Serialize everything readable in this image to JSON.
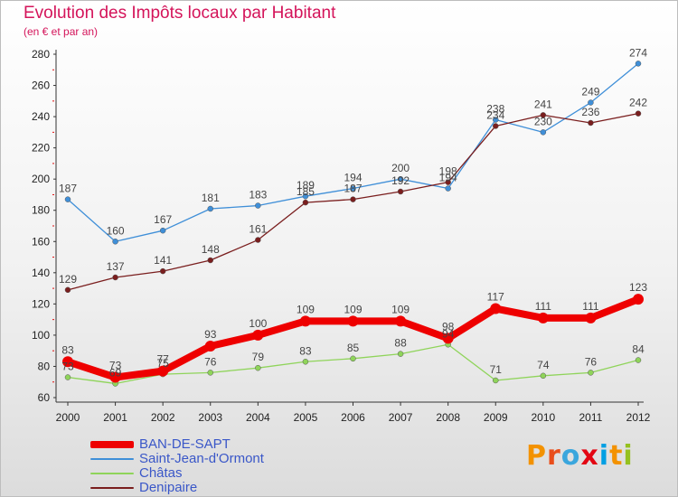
{
  "header": {
    "title": "Evolution des Impôts locaux par Habitant",
    "subtitle": "(en € et par an)"
  },
  "logo": {
    "text": "Proxiti",
    "letter_colors": [
      "#f39200",
      "#e94e1b",
      "#3aa6dd",
      "#e30613",
      "#009fe3",
      "#f39200",
      "#95c11f"
    ]
  },
  "chart_data": {
    "type": "line",
    "title": "Evolution des Impôts locaux par Habitant",
    "subtitle": "(en € et par an)",
    "x": [
      "2000",
      "2001",
      "2002",
      "2003",
      "2004",
      "2005",
      "2006",
      "2007",
      "2008",
      "2009",
      "2010",
      "2011",
      "2012"
    ],
    "ylim": [
      60,
      280
    ],
    "yticks": [
      60,
      80,
      100,
      120,
      140,
      160,
      180,
      200,
      220,
      240,
      260,
      280
    ],
    "grid": false,
    "legend_position": "bottom-left",
    "series": [
      {
        "name": "BAN-DE-SAPT",
        "color": "#ee0000",
        "values": [
          83,
          73,
          77,
          93,
          100,
          109,
          109,
          109,
          98,
          117,
          111,
          111,
          123
        ]
      },
      {
        "name": "Saint-Jean-d'Ormont",
        "color": "#3f8fd8",
        "values": [
          187,
          160,
          167,
          181,
          183,
          189,
          194,
          200,
          194,
          238,
          230,
          249,
          274
        ]
      },
      {
        "name": "Châtas",
        "color": "#8fd45a",
        "values": [
          73,
          69,
          75,
          76,
          79,
          83,
          85,
          88,
          94,
          71,
          74,
          76,
          84
        ]
      },
      {
        "name": "Denipaire",
        "color": "#7a1e1e",
        "values": [
          129,
          137,
          141,
          148,
          161,
          185,
          187,
          192,
          198,
          234,
          241,
          236,
          242
        ]
      }
    ]
  }
}
